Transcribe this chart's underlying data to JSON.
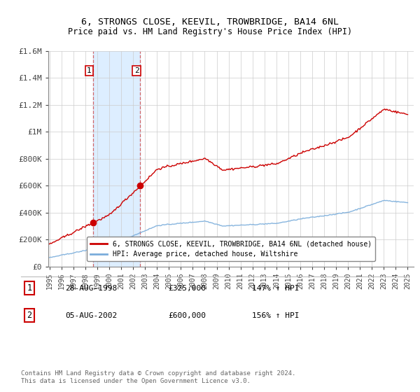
{
  "title": "6, STRONGS CLOSE, KEEVIL, TROWBRIDGE, BA14 6NL",
  "subtitle": "Price paid vs. HM Land Registry's House Price Index (HPI)",
  "legend_line1": "6, STRONGS CLOSE, KEEVIL, TROWBRIDGE, BA14 6NL (detached house)",
  "legend_line2": "HPI: Average price, detached house, Wiltshire",
  "sale1_label": "1",
  "sale1_date": "28-AUG-1998",
  "sale1_price": "£325,000",
  "sale1_hpi": "147% ↑ HPI",
  "sale2_label": "2",
  "sale2_date": "05-AUG-2002",
  "sale2_price": "£600,000",
  "sale2_hpi": "156% ↑ HPI",
  "footnote": "Contains HM Land Registry data © Crown copyright and database right 2024.\nThis data is licensed under the Open Government Licence v3.0.",
  "sale1_year": 1998.63,
  "sale1_value": 325000,
  "sale2_year": 2002.59,
  "sale2_value": 600000,
  "property_color": "#cc0000",
  "hpi_color": "#7aaddb",
  "highlight_color": "#ddeeff",
  "sale_box_color": "#cc0000",
  "ylim": [
    0,
    1600000
  ],
  "xlim": [
    1994.9,
    2025.5
  ],
  "yticks": [
    0,
    200000,
    400000,
    600000,
    800000,
    1000000,
    1200000,
    1400000,
    1600000
  ],
  "ytick_labels": [
    "£0",
    "£200K",
    "£400K",
    "£600K",
    "£800K",
    "£1M",
    "£1.2M",
    "£1.4M",
    "£1.6M"
  ],
  "xticks": [
    1995,
    1996,
    1997,
    1998,
    1999,
    2000,
    2001,
    2002,
    2003,
    2004,
    2005,
    2006,
    2007,
    2008,
    2009,
    2010,
    2011,
    2012,
    2013,
    2014,
    2015,
    2016,
    2017,
    2018,
    2019,
    2020,
    2021,
    2022,
    2023,
    2024,
    2025
  ]
}
